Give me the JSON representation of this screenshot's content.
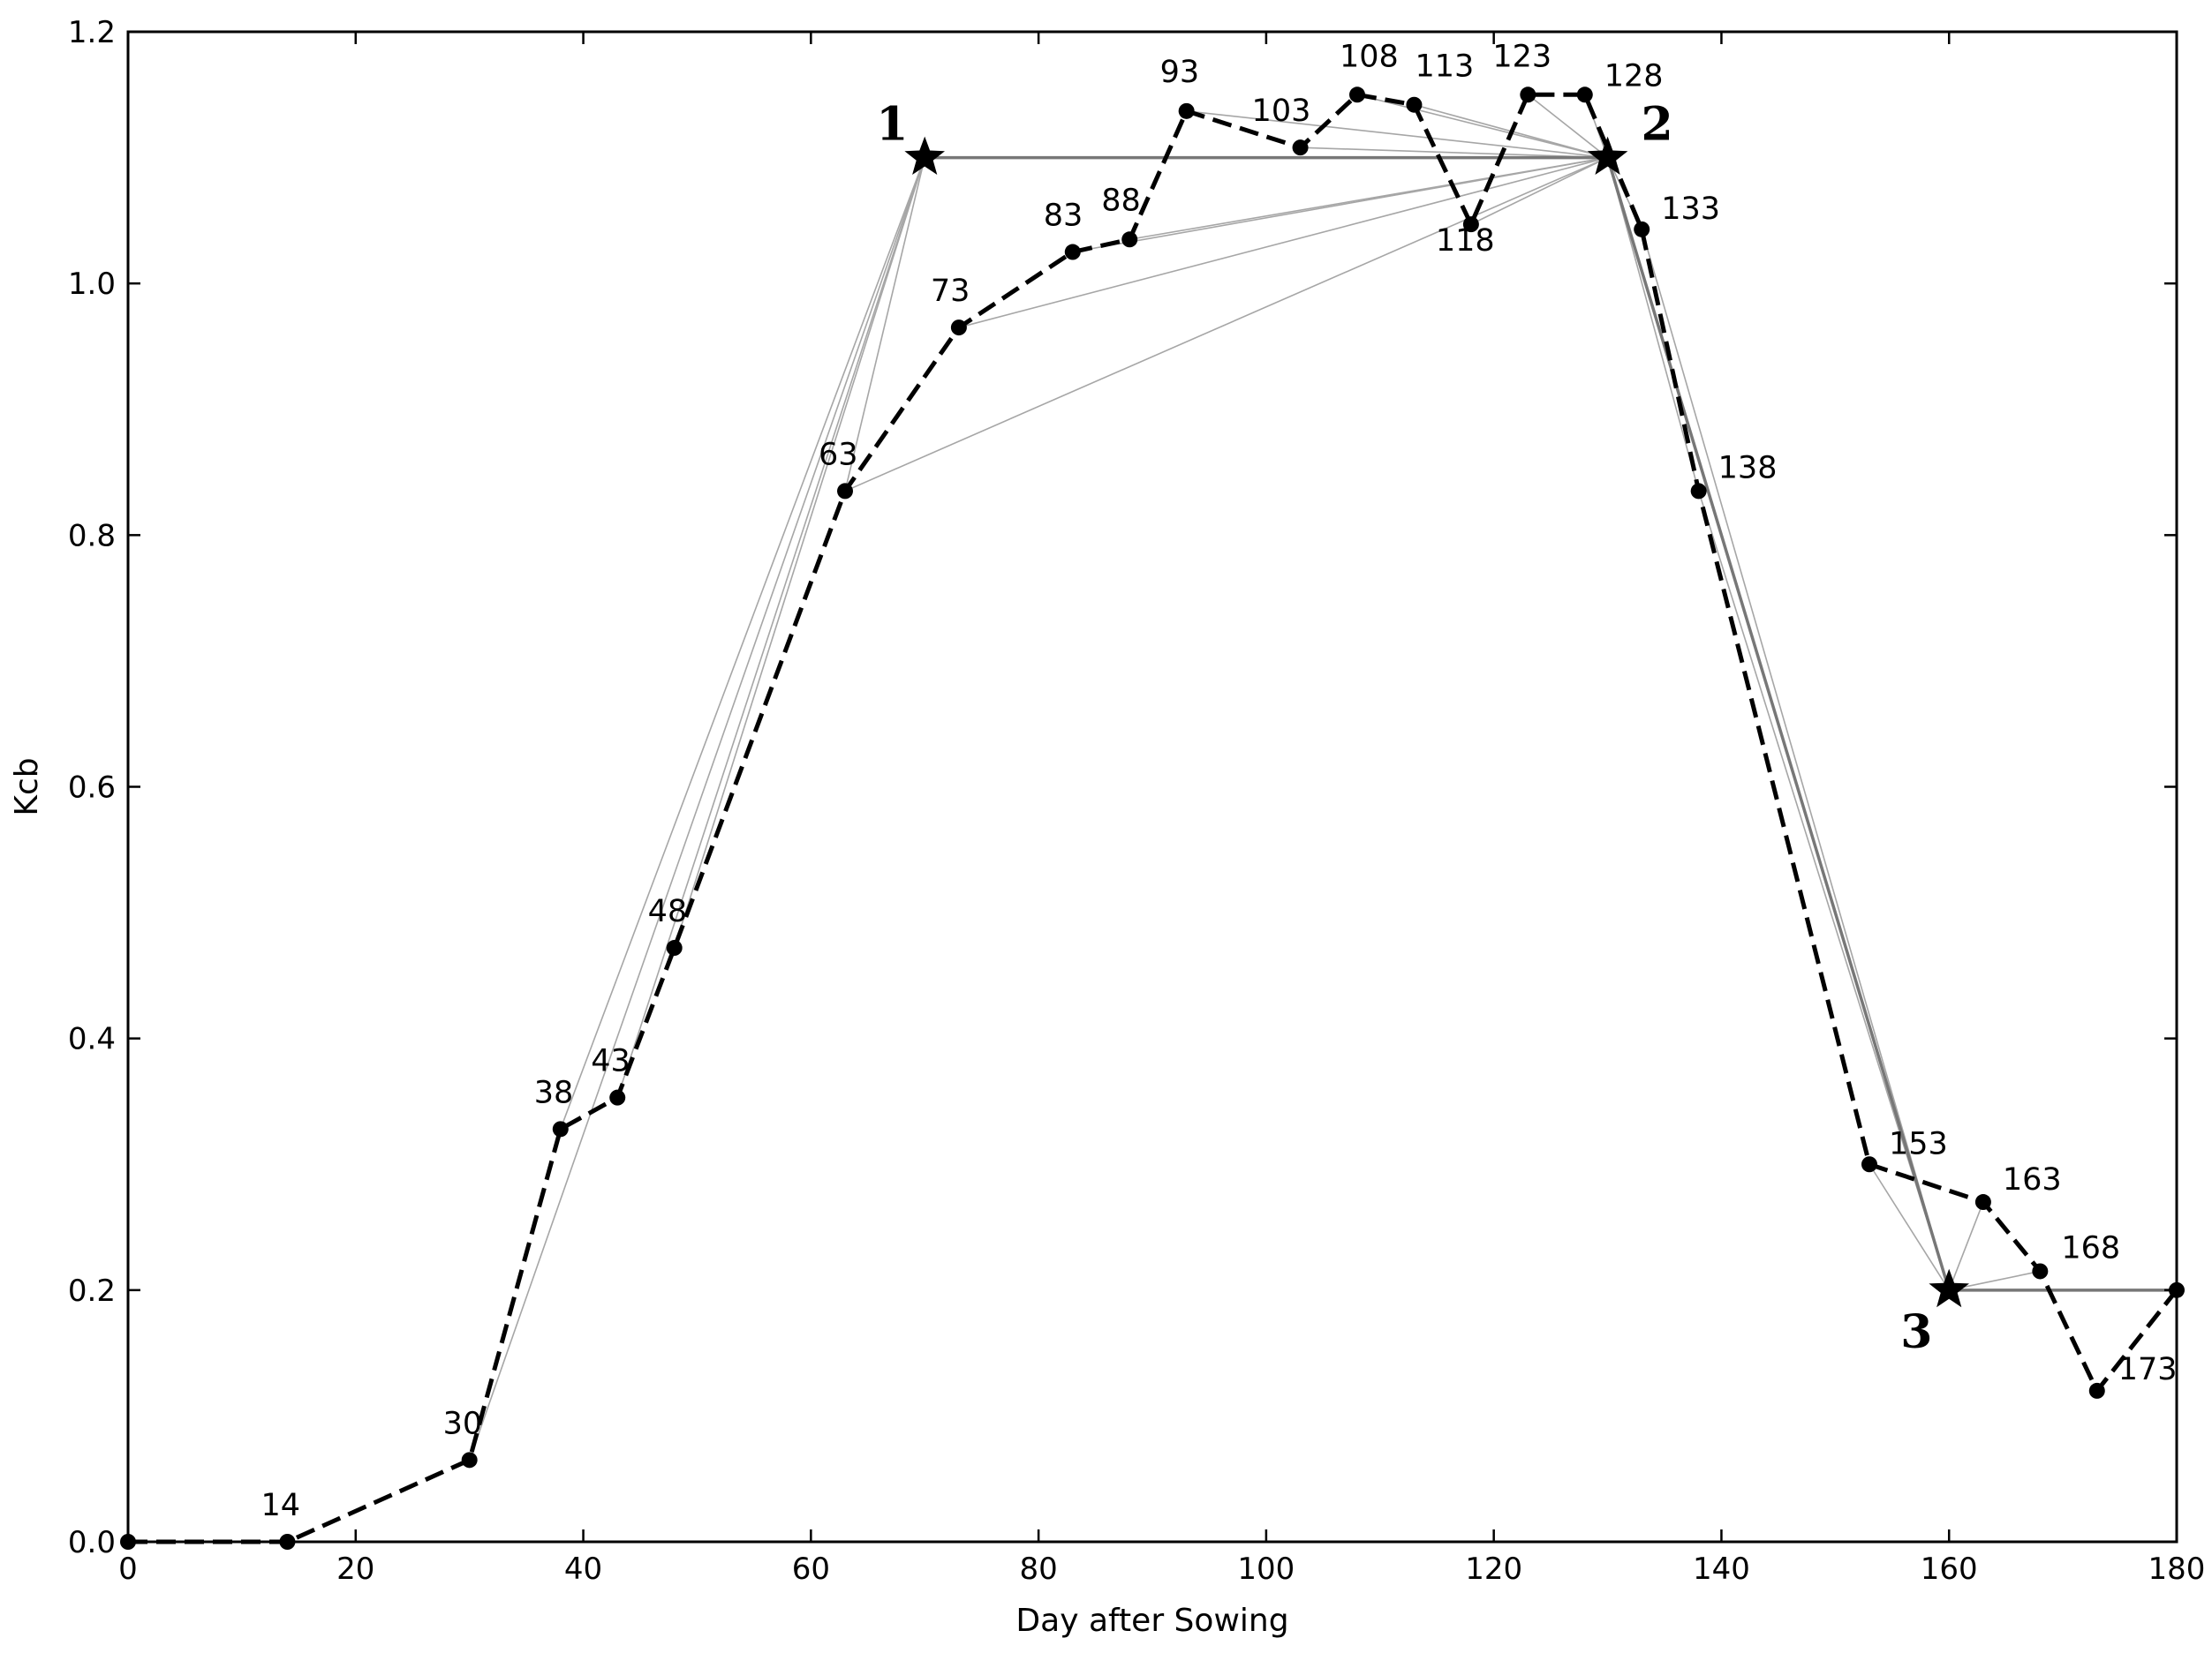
{
  "chart_data": {
    "type": "line",
    "title": "",
    "xlabel": "Day after Sowing",
    "ylabel": "Kcb",
    "xlim": [
      0,
      180
    ],
    "ylim": [
      0.0,
      1.2
    ],
    "xticks": [
      0,
      20,
      40,
      60,
      80,
      100,
      120,
      140,
      160,
      180
    ],
    "yticks": [
      "0.0",
      "0.2",
      "0.4",
      "0.6",
      "0.8",
      "1.0",
      "1.2"
    ],
    "grid": false,
    "series": [
      {
        "style": "dashed-black-with-dots",
        "points": [
          {
            "x": 0,
            "y": 0.0,
            "label": ""
          },
          {
            "x": 14,
            "y": 0.0,
            "label": "14"
          },
          {
            "x": 30,
            "y": 0.065,
            "label": "30"
          },
          {
            "x": 38,
            "y": 0.328,
            "label": "38"
          },
          {
            "x": 43,
            "y": 0.353,
            "label": "43"
          },
          {
            "x": 48,
            "y": 0.472,
            "label": "48"
          },
          {
            "x": 63,
            "y": 0.835,
            "label": "63"
          },
          {
            "x": 73,
            "y": 0.965,
            "label": "73"
          },
          {
            "x": 83,
            "y": 1.025,
            "label": "83"
          },
          {
            "x": 88,
            "y": 1.035,
            "label": "88"
          },
          {
            "x": 93,
            "y": 1.137,
            "label": "93"
          },
          {
            "x": 103,
            "y": 1.108,
            "label": "103"
          },
          {
            "x": 108,
            "y": 1.15,
            "label": "108"
          },
          {
            "x": 113,
            "y": 1.142,
            "label": "113"
          },
          {
            "x": 118,
            "y": 1.047,
            "label": "118"
          },
          {
            "x": 123,
            "y": 1.15,
            "label": "123"
          },
          {
            "x": 128,
            "y": 1.15,
            "label": "128"
          },
          {
            "x": 133,
            "y": 1.043,
            "label": "133"
          },
          {
            "x": 138,
            "y": 0.835,
            "label": "138"
          },
          {
            "x": 153,
            "y": 0.3,
            "label": "153"
          },
          {
            "x": 163,
            "y": 0.27,
            "label": "163"
          },
          {
            "x": 168,
            "y": 0.215,
            "label": "168"
          },
          {
            "x": 173,
            "y": 0.12,
            "label": "173"
          },
          {
            "x": 180,
            "y": 0.2,
            "label": ""
          }
        ]
      }
    ],
    "breakpoints": [
      {
        "x": 70,
        "y": 1.1,
        "label": "1"
      },
      {
        "x": 130,
        "y": 1.1,
        "label": "2"
      },
      {
        "x": 160,
        "y": 0.2,
        "label": "3"
      }
    ],
    "fit_segments": [
      [
        0,
        1
      ],
      [
        1,
        2
      ]
    ],
    "fan_lines": [
      {
        "from": 0,
        "to": [
          30,
          38,
          43,
          48,
          63
        ]
      },
      {
        "from": 1,
        "to": [
          63,
          73,
          83,
          88,
          93,
          103,
          108,
          113,
          118,
          123,
          128,
          133,
          138
        ]
      },
      {
        "from": 2,
        "to": [
          133,
          138,
          153,
          163,
          168,
          180
        ]
      }
    ]
  }
}
